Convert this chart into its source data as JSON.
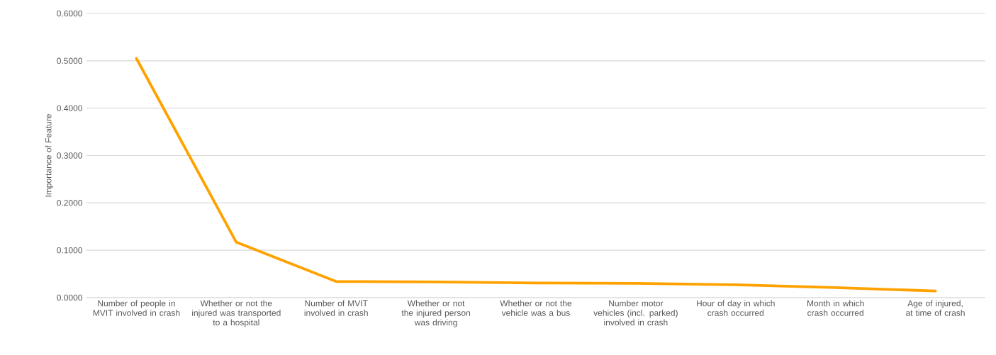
{
  "chart_data": {
    "type": "line",
    "ylabel": "Importance of Feature",
    "categories": [
      "Number of people in MVIT involved in crash",
      "Whether or not the injured was transported to a hospital",
      "Number of MVIT involved in crash",
      "Whether or not the injured person was driving",
      "Whether or not the vehicle was a bus",
      "Number motor vehicles (incl. parked) involved in crash",
      "Hour of day in which crash occurred",
      "Month in which crash occurred",
      "Age of injured, at time of crash"
    ],
    "series": [
      {
        "color": "#ffa200",
        "values": [
          0.505,
          0.117,
          0.034,
          0.033,
          0.031,
          0.03,
          0.027,
          0.021,
          0.014
        ]
      }
    ],
    "ylim": [
      0,
      0.6
    ],
    "yticks": [
      {
        "value": 0,
        "label": "0.0000"
      },
      {
        "value": 0.1,
        "label": "0.1000"
      },
      {
        "value": 0.2,
        "label": "0.2000"
      },
      {
        "value": 0.3,
        "label": "0.3000"
      },
      {
        "value": 0.4,
        "label": "0.4000"
      },
      {
        "value": 0.5,
        "label": "0.5000"
      },
      {
        "value": 0.6,
        "label": "0.6000"
      }
    ],
    "grid": "y"
  }
}
